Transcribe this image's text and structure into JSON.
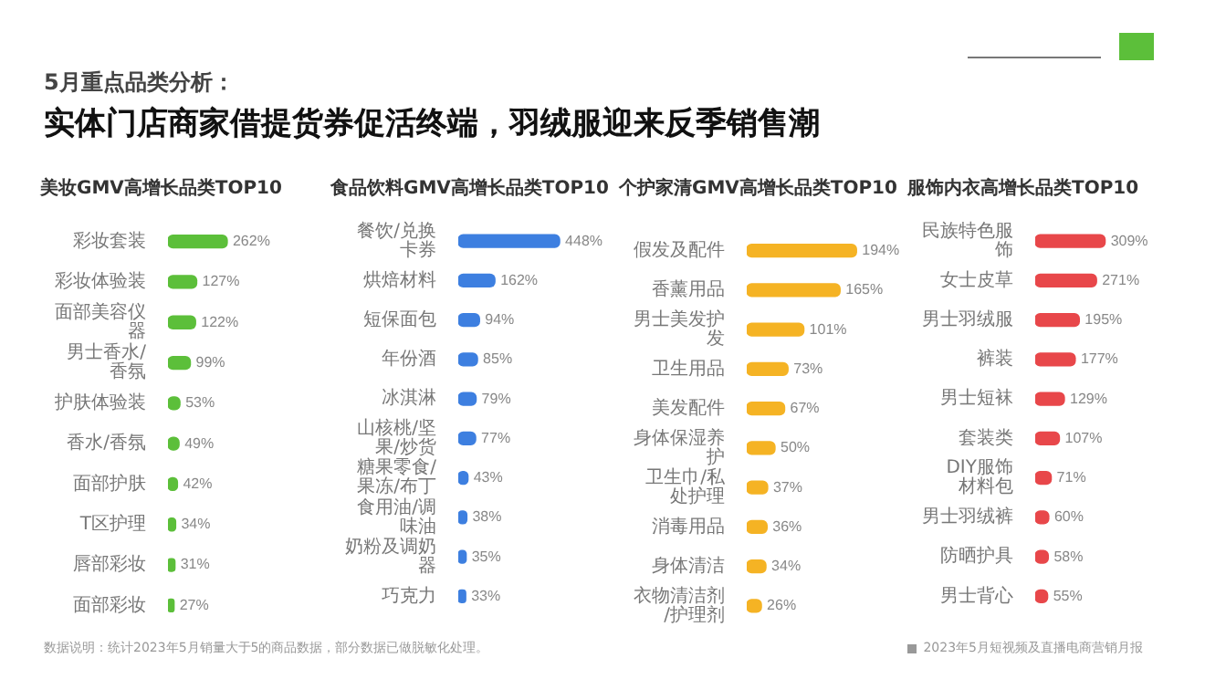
{
  "chart_data": [
    {
      "type": "other",
      "title": "5月重点品类分析：",
      "subtitle": "实体门店商家借提货券促活终端，羽绒服迎来反季销售潮",
      "annotations": [
        "数据说明：统计2023年5月销量大于5的商品数据，部分数据已做脱敏化处理。",
        "2023年5月短视频及直播电商营销月报"
      ]
    },
    {
      "type": "bar",
      "orientation": "horizontal",
      "title": "美妆GMV高增长品类TOP10",
      "color": "#5cbf3a",
      "categories": [
        "彩妆套装",
        "彩妆体验装",
        "面部美容仪器",
        "男士香水/香氛",
        "护肤体验装",
        "香水/香氛",
        "面部护肤",
        "T区护理",
        "唇部彩妆",
        "面部彩妆"
      ],
      "values": [
        262,
        127,
        122,
        99,
        53,
        49,
        42,
        34,
        31,
        27
      ],
      "value_labels": [
        "262%",
        "127%",
        "122%",
        "99%",
        "53%",
        "49%",
        "42%",
        "34%",
        "31%",
        "27%"
      ]
    },
    {
      "type": "bar",
      "orientation": "horizontal",
      "title": "食品饮料GMV高增长品类TOP10",
      "color": "#3d7fe0",
      "categories": [
        "餐饮/兑换卡券",
        "烘焙材料",
        "短保面包",
        "年份酒",
        "冰淇淋",
        "山核桃/坚果/炒货",
        "糖果零食/果冻/布丁",
        "食用油/调味油",
        "奶粉及调奶器",
        "巧克力"
      ],
      "values": [
        448,
        162,
        94,
        85,
        79,
        77,
        43,
        38,
        35,
        33
      ],
      "value_labels": [
        "448%",
        "162%",
        "94%",
        "85%",
        "79%",
        "77%",
        "43%",
        "38%",
        "35%",
        "33%"
      ]
    },
    {
      "type": "bar",
      "orientation": "horizontal",
      "title": "个护家清GMV高增长品类TOP10",
      "color": "#f5b324",
      "categories": [
        "假发及配件",
        "香薰用品",
        "男士美发护发",
        "卫生用品",
        "美发配件",
        "身体保湿养护",
        "卫生巾/私处护理",
        "消毒用品",
        "身体清洁",
        "衣物清洁剂/护理剂"
      ],
      "values": [
        194,
        165,
        101,
        73,
        67,
        50,
        37,
        36,
        34,
        26
      ],
      "value_labels": [
        "194%",
        "165%",
        "101%",
        "73%",
        "67%",
        "50%",
        "37%",
        "36%",
        "34%",
        "26%"
      ]
    },
    {
      "type": "bar",
      "orientation": "horizontal",
      "title": "服饰内衣高增长品类TOP10",
      "color": "#e8474a",
      "categories": [
        "民族特色服饰",
        "女士皮草",
        "男士羽绒服",
        "裤装",
        "男士短袜",
        "套装类",
        "DIY服饰材料包",
        "男士羽绒裤",
        "防晒护具",
        "男士背心"
      ],
      "values": [
        309,
        271,
        195,
        177,
        129,
        107,
        71,
        60,
        58,
        55
      ],
      "value_labels": [
        "309%",
        "271%",
        "195%",
        "177%",
        "129%",
        "107%",
        "71%",
        "60%",
        "58%",
        "55%"
      ]
    }
  ]
}
